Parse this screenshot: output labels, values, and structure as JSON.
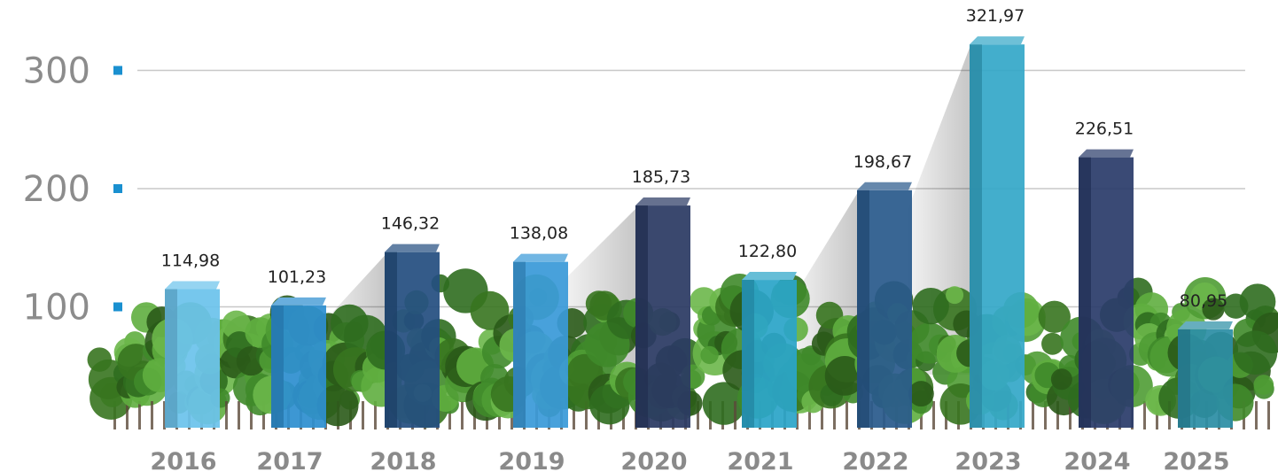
{
  "chart_data": {
    "type": "bar",
    "title": "",
    "xlabel": "",
    "ylabel": "",
    "categories": [
      "2016",
      "2017",
      "2018",
      "2019",
      "2020",
      "2021",
      "2022",
      "2023",
      "2024",
      "2025"
    ],
    "values": [
      114.98,
      101.23,
      146.32,
      138.08,
      185.73,
      122.8,
      198.67,
      321.97,
      226.51,
      80.95
    ],
    "value_labels": [
      "114,98",
      "101,23",
      "146,32",
      "138,08",
      "185,73",
      "122,80",
      "198,67",
      "321,97",
      "226,51",
      "80,95"
    ],
    "y_ticks": [
      100,
      200,
      300
    ],
    "ylim": [
      0,
      330
    ],
    "grid": true,
    "colors": [
      "#6cc3ec",
      "#2e8fd0",
      "#254f80",
      "#3a9ad8",
      "#2b3a63",
      "#2ba5c8",
      "#2a5a8c",
      "#35a8c8",
      "#2b3c6a",
      "#2c8ea5"
    ],
    "accent_color": "#1a90d0",
    "background_decoration": "tree-row"
  }
}
